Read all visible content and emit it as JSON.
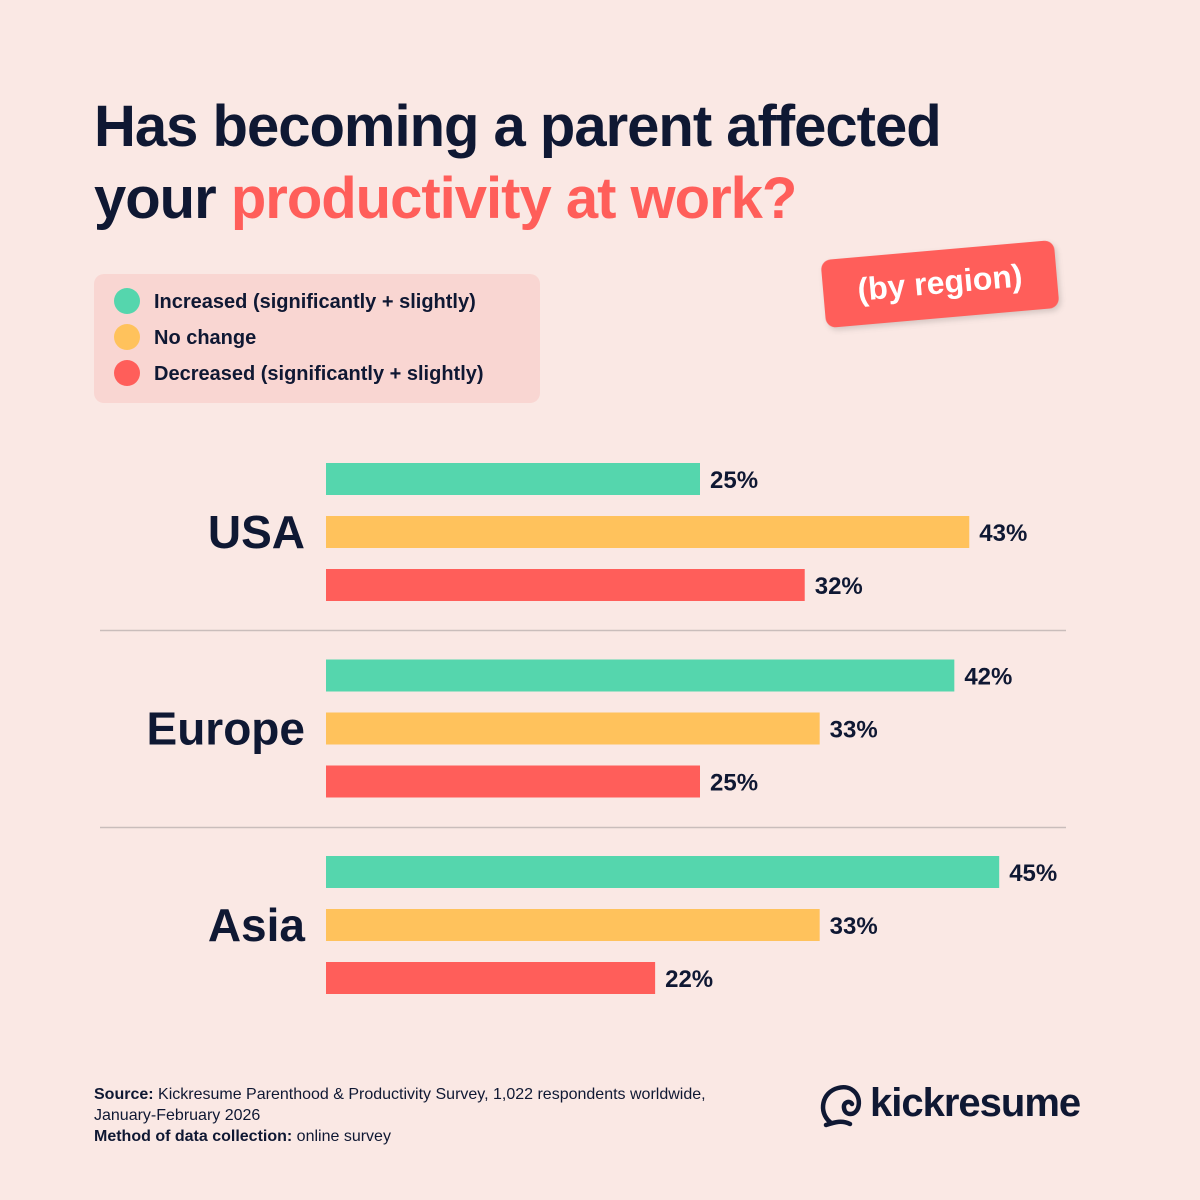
{
  "chart_data": {
    "type": "bar",
    "orientation": "horizontal",
    "title": [
      "Has becoming a parent affected",
      "your",
      "productivity at work?"
    ],
    "subtitle": "(by region)",
    "categories": [
      "USA",
      "Europe",
      "Asia"
    ],
    "series": [
      {
        "name": "Increased (significantly + slightly)",
        "color": "#55d6ad",
        "values": [
          25,
          42,
          45
        ],
        "value_labels": [
          "25%",
          "42%",
          "45%"
        ]
      },
      {
        "name": "No change",
        "color": "#ffc25c",
        "values": [
          43,
          33,
          33
        ],
        "value_labels": [
          "43%",
          "33%",
          "33%"
        ]
      },
      {
        "name": "Decreased (significantly + slightly)",
        "color": "#ff5e5a",
        "values": [
          32,
          25,
          22
        ],
        "value_labels": [
          "32%",
          "25%",
          "22%"
        ]
      }
    ],
    "source": {
      "label": "Source:",
      "lines": [
        "Kickresume Parenthood & Productivity Survey, 1,022 respondents worldwide,",
        "January-February 2026"
      ]
    },
    "method": {
      "label": "Method of data collection:",
      "text": "online survey"
    },
    "brand": "kickresume"
  }
}
